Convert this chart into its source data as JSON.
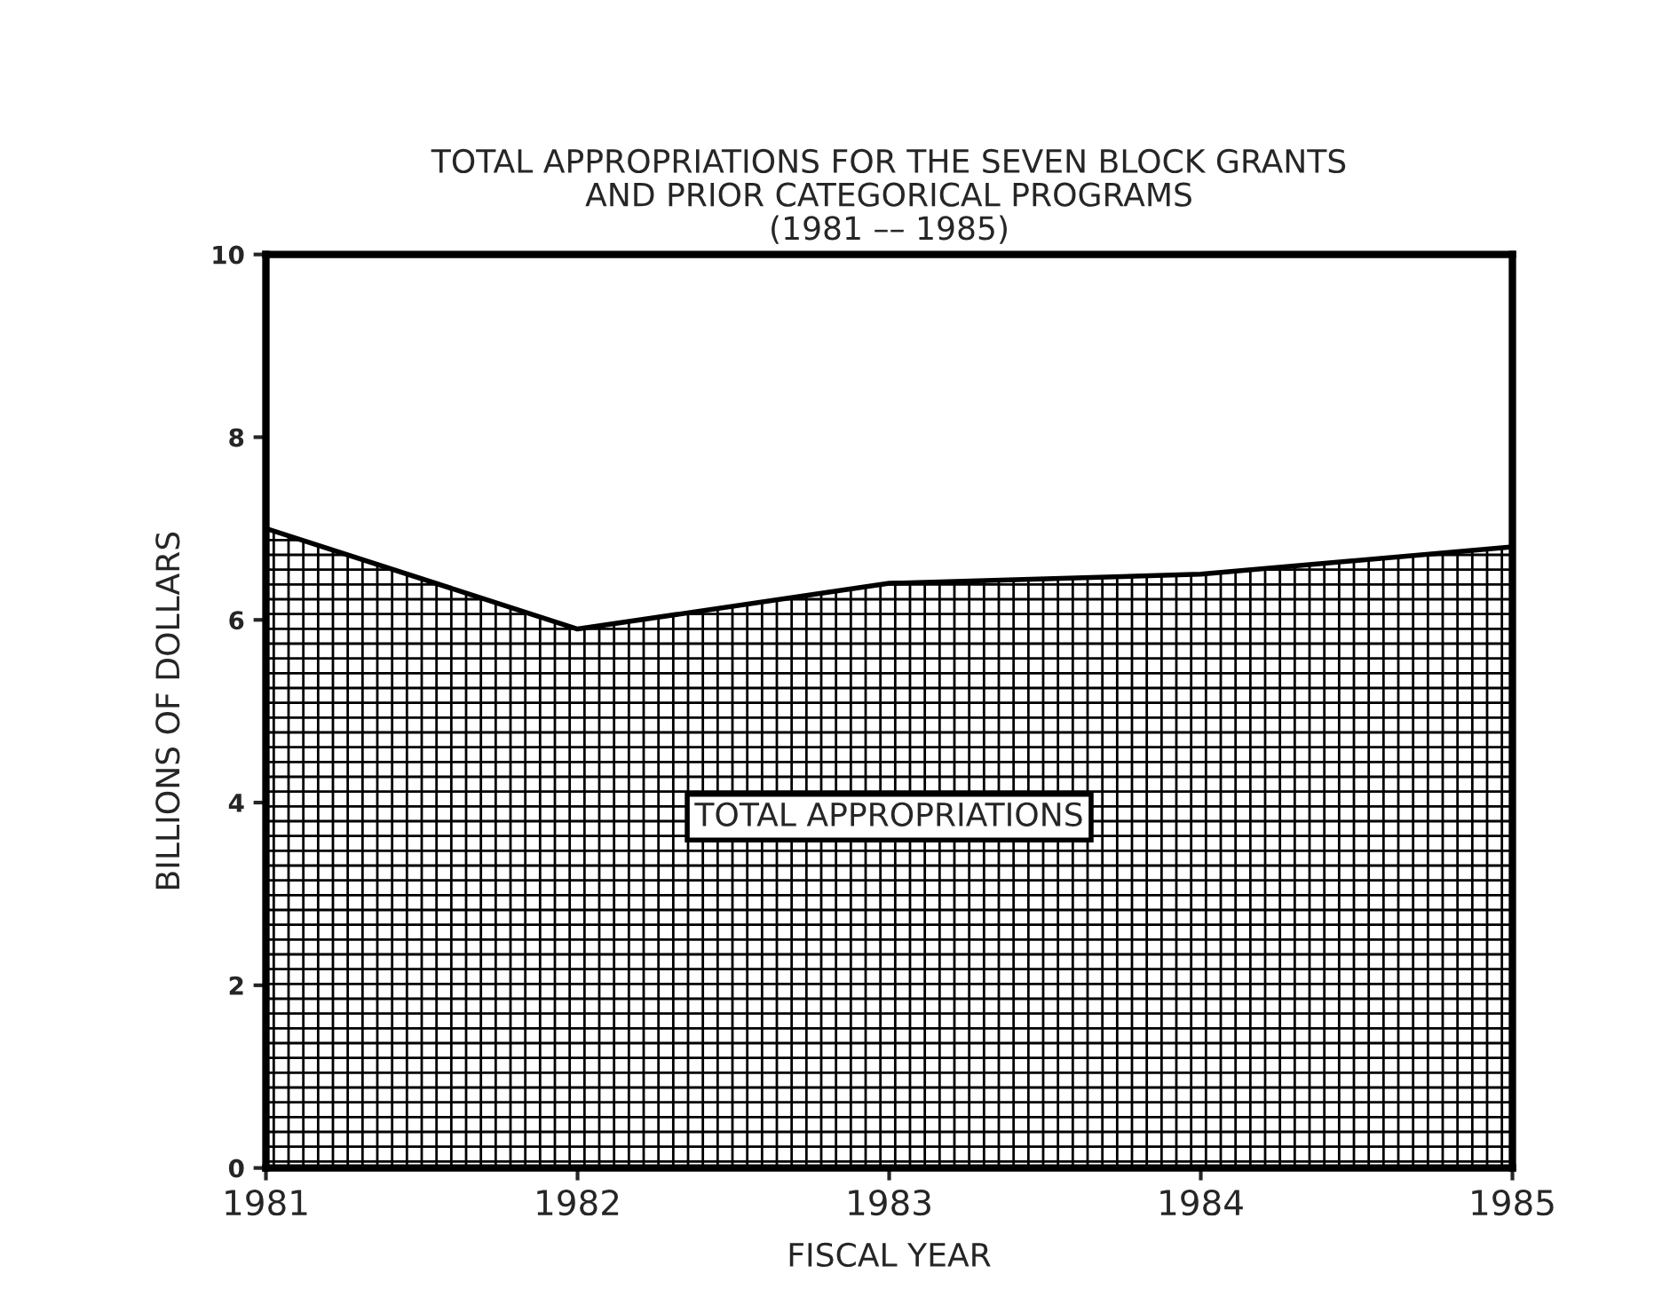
{
  "chart_data": {
    "type": "area",
    "title": "TOTAL APPROPRIATIONS FOR THE SEVEN BLOCK GRANTS\nAND PRIOR CATEGORICAL PROGRAMS\n(1981 –– 1985)",
    "xlabel": "FISCAL YEAR",
    "ylabel": "BILLIONS OF DOLLARS",
    "x": [
      1981,
      1982,
      1983,
      1984,
      1985
    ],
    "series": [
      {
        "name": "TOTAL APPROPRIATIONS",
        "color": "#000000",
        "values": [
          7.0,
          5.9,
          6.4,
          6.5,
          6.8
        ]
      }
    ],
    "xlim": [
      1981,
      1985
    ],
    "xticks": [
      1981,
      1982,
      1983,
      1984,
      1985
    ],
    "ylim": [
      0,
      10
    ],
    "yticks": [
      0,
      2,
      4,
      6,
      8,
      10
    ],
    "grid": false,
    "legend": false
  }
}
